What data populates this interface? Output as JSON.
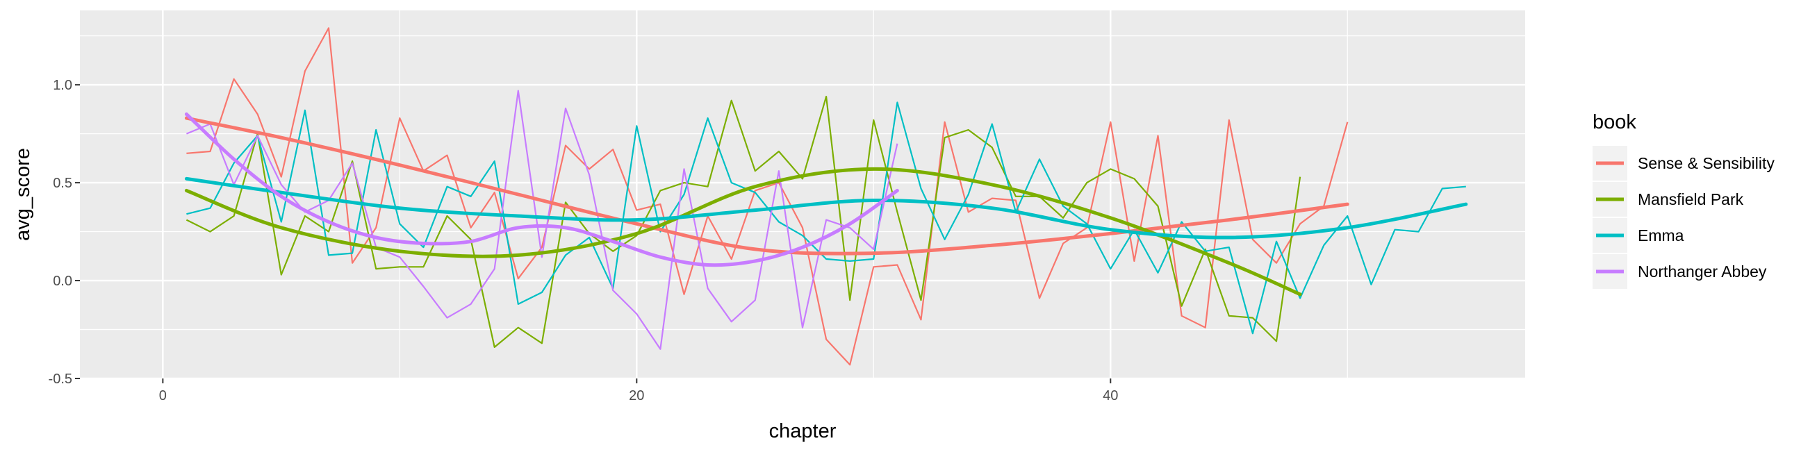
{
  "chart_data": {
    "type": "line",
    "xlabel": "chapter",
    "ylabel": "avg_score",
    "xlim": [
      -3.5,
      57.5
    ],
    "ylim": [
      -0.5,
      1.38
    ],
    "x_ticks": [
      0,
      20,
      40
    ],
    "x_tick_labels": [
      "0",
      "20",
      "40"
    ],
    "y_ticks": [
      -0.5,
      0.0,
      0.5,
      1.0
    ],
    "y_tick_labels": [
      "-0.5",
      "0.0",
      "0.5",
      "1.0"
    ],
    "grid": true,
    "background": "#EBEBEB",
    "legend": {
      "title": "book",
      "position": "right"
    },
    "series": [
      {
        "name": "Sense & Sensibility",
        "color": "#F8766D",
        "x": [
          1,
          2,
          3,
          4,
          5,
          6,
          7,
          8,
          9,
          10,
          11,
          12,
          13,
          14,
          15,
          16,
          17,
          18,
          19,
          20,
          21,
          22,
          23,
          24,
          25,
          26,
          27,
          28,
          29,
          30,
          31,
          32,
          33,
          34,
          35,
          36,
          37,
          38,
          39,
          40,
          41,
          42,
          43,
          44,
          45,
          46,
          47,
          48,
          49,
          50
        ],
        "y": [
          0.65,
          0.66,
          1.03,
          0.85,
          0.53,
          1.07,
          1.29,
          0.09,
          0.27,
          0.83,
          0.56,
          0.64,
          0.27,
          0.45,
          0.01,
          0.17,
          0.69,
          0.57,
          0.67,
          0.36,
          0.39,
          -0.07,
          0.33,
          0.11,
          0.46,
          0.5,
          0.27,
          -0.3,
          -0.43,
          0.07,
          0.08,
          -0.2,
          0.81,
          0.35,
          0.42,
          0.41,
          -0.09,
          0.19,
          0.27,
          0.81,
          0.1,
          0.74,
          -0.18,
          -0.24,
          0.82,
          0.21,
          0.09,
          0.29,
          0.38,
          0.81
        ],
        "smooth_x": [
          1,
          5,
          10,
          15,
          20,
          25,
          30,
          35,
          40,
          45,
          50
        ],
        "smooth_y": [
          0.83,
          0.73,
          0.59,
          0.44,
          0.29,
          0.16,
          0.14,
          0.18,
          0.24,
          0.31,
          0.39
        ]
      },
      {
        "name": "Mansfield Park",
        "color": "#7CAE00",
        "x": [
          1,
          2,
          3,
          4,
          5,
          6,
          7,
          8,
          9,
          10,
          11,
          12,
          13,
          14,
          15,
          16,
          17,
          18,
          19,
          20,
          21,
          22,
          23,
          24,
          25,
          26,
          27,
          28,
          29,
          30,
          31,
          32,
          33,
          34,
          35,
          36,
          37,
          38,
          39,
          40,
          41,
          42,
          43,
          44,
          45,
          46,
          47,
          48
        ],
        "y": [
          0.31,
          0.25,
          0.33,
          0.75,
          0.03,
          0.33,
          0.25,
          0.61,
          0.06,
          0.07,
          0.07,
          0.33,
          0.21,
          -0.34,
          -0.24,
          -0.32,
          0.4,
          0.24,
          0.15,
          0.23,
          0.46,
          0.5,
          0.48,
          0.92,
          0.56,
          0.66,
          0.52,
          0.94,
          -0.1,
          0.82,
          0.35,
          -0.1,
          0.73,
          0.77,
          0.68,
          0.43,
          0.43,
          0.32,
          0.5,
          0.57,
          0.52,
          0.38,
          -0.13,
          0.16,
          -0.18,
          -0.19,
          -0.31,
          0.53
        ],
        "smooth_x": [
          1,
          5,
          10,
          15,
          20,
          25,
          30,
          35,
          40,
          45,
          48
        ],
        "smooth_y": [
          0.46,
          0.27,
          0.15,
          0.13,
          0.24,
          0.48,
          0.57,
          0.49,
          0.32,
          0.09,
          -0.07
        ]
      },
      {
        "name": "Emma",
        "color": "#00BFC4",
        "x": [
          1,
          2,
          3,
          4,
          5,
          6,
          7,
          8,
          9,
          10,
          11,
          12,
          13,
          14,
          15,
          16,
          17,
          18,
          19,
          20,
          21,
          22,
          23,
          24,
          25,
          26,
          27,
          28,
          29,
          30,
          31,
          32,
          33,
          34,
          35,
          36,
          37,
          38,
          39,
          40,
          41,
          42,
          43,
          44,
          45,
          46,
          47,
          48,
          49,
          50,
          51,
          52,
          53,
          54,
          55
        ],
        "y": [
          0.34,
          0.37,
          0.6,
          0.74,
          0.3,
          0.87,
          0.13,
          0.14,
          0.77,
          0.29,
          0.17,
          0.48,
          0.43,
          0.61,
          -0.12,
          -0.06,
          0.13,
          0.22,
          -0.04,
          0.79,
          0.25,
          0.44,
          0.83,
          0.5,
          0.45,
          0.3,
          0.23,
          0.11,
          0.1,
          0.11,
          0.91,
          0.47,
          0.21,
          0.44,
          0.8,
          0.35,
          0.62,
          0.38,
          0.29,
          0.06,
          0.26,
          0.04,
          0.3,
          0.15,
          0.17,
          -0.27,
          0.2,
          -0.09,
          0.18,
          0.33,
          -0.02,
          0.26,
          0.25,
          0.47,
          0.48
        ],
        "smooth_x": [
          1,
          5,
          10,
          15,
          20,
          25,
          30,
          35,
          40,
          45,
          50,
          55
        ],
        "smooth_y": [
          0.52,
          0.45,
          0.37,
          0.33,
          0.31,
          0.36,
          0.41,
          0.37,
          0.26,
          0.22,
          0.27,
          0.39
        ]
      },
      {
        "name": "Northanger Abbey",
        "color": "#C77CFF",
        "x": [
          1,
          2,
          3,
          4,
          5,
          6,
          7,
          8,
          9,
          10,
          11,
          12,
          13,
          14,
          15,
          16,
          17,
          18,
          19,
          20,
          21,
          22,
          23,
          24,
          25,
          26,
          27,
          28,
          29,
          30,
          31
        ],
        "y": [
          0.75,
          0.8,
          0.49,
          0.74,
          0.49,
          0.35,
          0.41,
          0.6,
          0.17,
          0.12,
          -0.03,
          -0.19,
          -0.12,
          0.06,
          0.97,
          0.12,
          0.88,
          0.54,
          -0.05,
          -0.17,
          -0.35,
          0.57,
          -0.04,
          -0.21,
          -0.1,
          0.56,
          -0.24,
          0.31,
          0.27,
          0.16,
          0.7
        ],
        "smooth_x": [
          1,
          3,
          5,
          7,
          9,
          11,
          13,
          15,
          17,
          19,
          21,
          23,
          25,
          27,
          29,
          31
        ],
        "smooth_y": [
          0.85,
          0.62,
          0.43,
          0.3,
          0.22,
          0.19,
          0.2,
          0.27,
          0.27,
          0.2,
          0.12,
          0.08,
          0.1,
          0.17,
          0.29,
          0.46
        ]
      }
    ]
  }
}
